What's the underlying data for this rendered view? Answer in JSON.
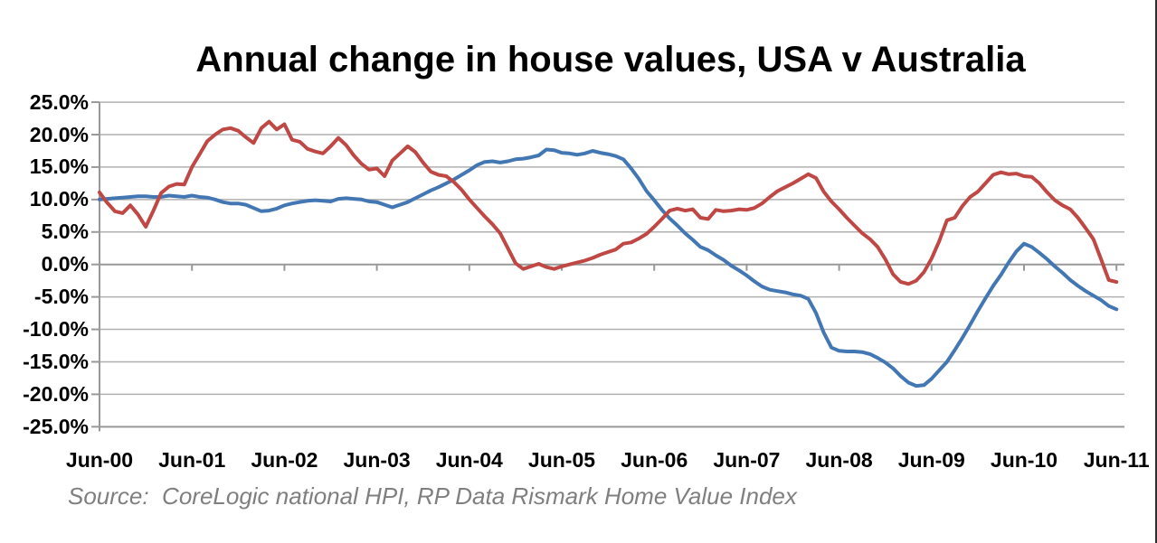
{
  "title": "Annual change in house values, USA v Australia",
  "source_note": "Source:  CoreLogic national HPI, RP Data Rismark Home Value Index",
  "colors": {
    "usa_line": "#4377B3",
    "australia_line": "#BF4845",
    "gridline": "#B0B0B0",
    "axis": "#999999",
    "title_text": "#000000",
    "source_text": "#7F7F7F",
    "background": "#FFFFFF",
    "frame_border": "#2E2E2E"
  },
  "chart_data": {
    "type": "line",
    "title": "Annual change in house values, USA v Australia",
    "xlabel": "",
    "ylabel": "",
    "legend": "none",
    "grid": "horizontal",
    "ylim": [
      -25,
      25
    ],
    "y_step": 5,
    "y_tick_labels": [
      "25.0%",
      "20.0%",
      "15.0%",
      "10.0%",
      "5.0%",
      "0.0%",
      "-5.0%",
      "-10.0%",
      "-15.0%",
      "-20.0%",
      "-25.0%"
    ],
    "x_tick_labels": [
      "Jun-00",
      "Jun-01",
      "Jun-02",
      "Jun-03",
      "Jun-04",
      "Jun-05",
      "Jun-06",
      "Jun-07",
      "Jun-08",
      "Jun-09",
      "Jun-10",
      "Jun-11"
    ],
    "x_start": "Jun-2000",
    "x_end": "Jun-2011",
    "frequency": "monthly",
    "series": [
      {
        "name": "USA",
        "color": "#4377B3",
        "values": [
          10.0,
          10.1,
          10.2,
          10.3,
          10.4,
          10.5,
          10.5,
          10.4,
          10.4,
          10.6,
          10.5,
          10.4,
          10.6,
          10.4,
          10.3,
          10.0,
          9.6,
          9.4,
          9.4,
          9.2,
          8.7,
          8.2,
          8.3,
          8.6,
          9.1,
          9.4,
          9.6,
          9.8,
          9.9,
          9.8,
          9.7,
          10.1,
          10.2,
          10.1,
          10.0,
          9.7,
          9.6,
          9.2,
          8.8,
          9.2,
          9.6,
          10.2,
          10.8,
          11.4,
          11.9,
          12.5,
          13.1,
          13.8,
          14.5,
          15.3,
          15.8,
          15.9,
          15.7,
          15.9,
          16.2,
          16.3,
          16.5,
          16.8,
          17.7,
          17.6,
          17.2,
          17.1,
          16.9,
          17.1,
          17.5,
          17.2,
          17.0,
          16.7,
          16.2,
          14.8,
          13.2,
          11.3,
          9.9,
          8.4,
          7.1,
          6.0,
          4.8,
          3.8,
          2.7,
          2.2,
          1.4,
          0.7,
          -0.2,
          -0.9,
          -1.7,
          -2.6,
          -3.4,
          -3.9,
          -4.1,
          -4.3,
          -4.6,
          -4.8,
          -5.3,
          -7.5,
          -10.5,
          -12.8,
          -13.3,
          -13.4,
          -13.4,
          -13.5,
          -13.8,
          -14.4,
          -15.1,
          -16.0,
          -17.2,
          -18.2,
          -18.7,
          -18.6,
          -17.6,
          -16.3,
          -15.0,
          -13.2,
          -11.3,
          -9.3,
          -7.2,
          -5.2,
          -3.3,
          -1.6,
          0.3,
          2.0,
          3.2,
          2.7,
          1.8,
          0.8,
          -0.3,
          -1.3,
          -2.4,
          -3.3,
          -4.1,
          -4.8,
          -5.5,
          -6.4,
          -6.9
        ]
      },
      {
        "name": "Australia",
        "color": "#BF4845",
        "values": [
          11.1,
          9.5,
          8.2,
          7.9,
          9.1,
          7.7,
          5.8,
          8.3,
          11.0,
          12.0,
          12.4,
          12.3,
          15.0,
          17.0,
          19.0,
          20.0,
          20.8,
          21.0,
          20.6,
          19.6,
          18.7,
          21.0,
          22.0,
          20.8,
          21.6,
          19.2,
          18.9,
          17.8,
          17.4,
          17.1,
          18.2,
          19.5,
          18.4,
          16.8,
          15.5,
          14.6,
          14.8,
          13.6,
          16.0,
          17.1,
          18.2,
          17.3,
          15.7,
          14.3,
          13.8,
          13.6,
          12.7,
          11.5,
          10.0,
          8.7,
          7.4,
          6.2,
          4.8,
          2.5,
          0.2,
          -0.7,
          -0.3,
          0.1,
          -0.4,
          -0.7,
          -0.3,
          0.0,
          0.3,
          0.6,
          1.0,
          1.5,
          1.9,
          2.3,
          3.2,
          3.4,
          4.0,
          4.7,
          5.8,
          7.0,
          8.3,
          8.6,
          8.3,
          8.5,
          7.2,
          7.0,
          8.4,
          8.2,
          8.3,
          8.5,
          8.4,
          8.7,
          9.4,
          10.4,
          11.3,
          11.9,
          12.5,
          13.2,
          13.9,
          13.3,
          11.2,
          9.7,
          8.5,
          7.2,
          6.0,
          4.8,
          3.9,
          2.7,
          0.8,
          -1.5,
          -2.7,
          -3.0,
          -2.5,
          -1.2,
          0.9,
          3.6,
          6.8,
          7.2,
          9.0,
          10.4,
          11.2,
          12.5,
          13.8,
          14.2,
          13.9,
          14.0,
          13.6,
          13.5,
          12.5,
          11.1,
          9.9,
          9.1,
          8.5,
          7.2,
          5.6,
          3.9,
          0.8,
          -2.4,
          -2.7
        ]
      }
    ]
  }
}
